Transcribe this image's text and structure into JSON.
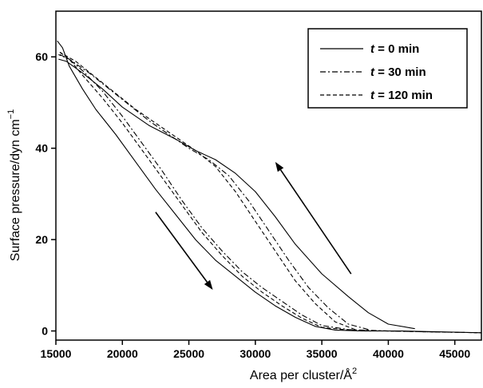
{
  "chart_data": {
    "type": "line",
    "xlabel": "Area per cluster/Å",
    "xlabel_sup": "2",
    "ylabel": "Surface pressure/dyn cm",
    "ylabel_sup": "−1",
    "xlim": [
      15000,
      47000
    ],
    "ylim": [
      -2,
      70
    ],
    "x_ticks": [
      15000,
      20000,
      25000,
      30000,
      35000,
      40000,
      45000
    ],
    "y_ticks": [
      0,
      20,
      40,
      60
    ],
    "grid": false,
    "legend_position": "top-right",
    "series": [
      {
        "name": "t = 0 min",
        "dash": "solid",
        "branches": [
          {
            "direction": "compression",
            "x": [
              42000,
              40000,
              38500,
              37000,
              35000,
              33000,
              31500,
              30000,
              28500,
              27000,
              25500,
              24000,
              22000,
              20000,
              18500,
              17000,
              15800,
              15200
            ],
            "y": [
              0.5,
              1.5,
              4,
              7.5,
              12.5,
              19,
              25,
              30.5,
              34.5,
              37.5,
              39.5,
              42,
              45,
              49,
              53,
              56.5,
              59,
              59.5
            ]
          },
          {
            "direction": "expansion",
            "x": [
              15100,
              15500,
              16000,
              17000,
              18000,
              19500,
              21000,
              22500,
              24000,
              25500,
              27000,
              28500,
              30000,
              31500,
              33000,
              34500,
              36000,
              38000,
              41000,
              44000,
              47000
            ],
            "y": [
              63.5,
              62,
              58,
              53,
              48.5,
              43,
              37,
              31,
              25.5,
              20,
              15.5,
              12,
              8.5,
              5.5,
              3,
              1,
              0.2,
              0,
              0,
              -0.2,
              -0.4
            ]
          }
        ]
      },
      {
        "name": "t = 30 min",
        "dash": "dashdot",
        "branches": [
          {
            "direction": "compression",
            "x": [
              38500,
              37000,
              35500,
              34000,
              32500,
              31000,
              29500,
              28000,
              26500,
              25000,
              23500,
              22000,
              20500,
              19000,
              17500,
              16000,
              15200
            ],
            "y": [
              0.3,
              1.5,
              5,
              9.5,
              15.5,
              22,
              28.5,
              34,
              37.5,
              40,
              43,
              46,
              49.5,
              53,
              56.5,
              59.5,
              60.5
            ]
          },
          {
            "direction": "expansion",
            "x": [
              15300,
              16000,
              17000,
              18500,
              20000,
              21500,
              23000,
              24500,
              26000,
              27500,
              29000,
              30500,
              32000,
              33500,
              35000,
              37000,
              40000,
              43000,
              47000
            ],
            "y": [
              60.5,
              59.5,
              57,
              52.5,
              47,
              41,
              35,
              28.5,
              22.5,
              17.5,
              13,
              9.5,
              6.5,
              3.5,
              1.2,
              0.3,
              0,
              -0.2,
              -0.4
            ]
          }
        ]
      },
      {
        "name": "t = 120 min",
        "dash": "dashed",
        "branches": [
          {
            "direction": "compression",
            "x": [
              37500,
              36000,
              34500,
              33000,
              31500,
              30000,
              28500,
              27000,
              25500,
              24000,
              22500,
              21000,
              19500,
              18000,
              16500,
              15300
            ],
            "y": [
              0.3,
              2,
              6,
              11,
              17.5,
              24,
              30.5,
              36,
              39.5,
              42.5,
              45.5,
              48.5,
              52,
              55.5,
              59,
              61
            ]
          },
          {
            "direction": "expansion",
            "x": [
              15300,
              16000,
              17000,
              18500,
              20000,
              21500,
              23000,
              24500,
              26000,
              27500,
              29000,
              30500,
              32000,
              33500,
              35000,
              37000,
              40000,
              43000,
              47000
            ],
            "y": [
              61,
              59.5,
              56,
              51,
              45.5,
              39.5,
              33.5,
              27.5,
              21.5,
              16.5,
              12,
              8.5,
              5.5,
              2.8,
              0.8,
              0.2,
              0,
              -0.2,
              -0.4
            ]
          }
        ]
      }
    ],
    "annotations": [
      {
        "type": "arrow",
        "meaning": "compression",
        "from": [
          22500,
          26
        ],
        "to": [
          26800,
          9
        ]
      },
      {
        "type": "arrow",
        "meaning": "expansion",
        "from": [
          37200,
          12.5
        ],
        "to": [
          31500,
          37
        ]
      }
    ]
  },
  "legend": {
    "entries": [
      {
        "var": "t",
        "rest": " = 0 min",
        "dash": "solid"
      },
      {
        "var": "t",
        "rest": " = 30 min",
        "dash": "dashdot"
      },
      {
        "var": "t",
        "rest": " = 120 min",
        "dash": "dashed"
      }
    ]
  }
}
